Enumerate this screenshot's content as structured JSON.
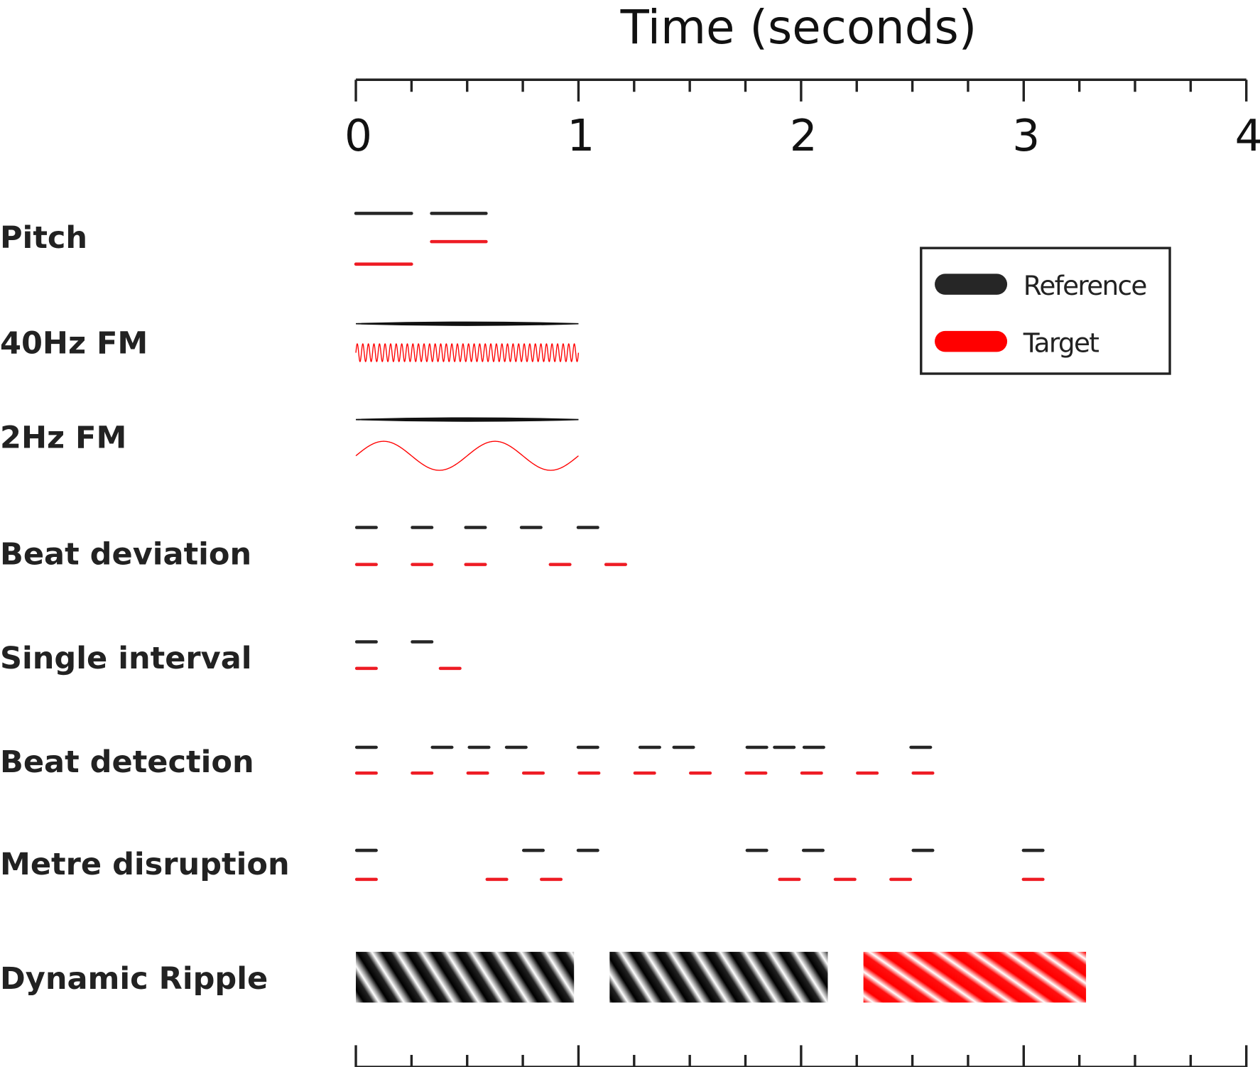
{
  "chart_data": {
    "type": "timeline",
    "title": "Time (seconds)",
    "xlim": [
      0,
      4
    ],
    "major_ticks": [
      "0",
      "1",
      "2",
      "3",
      "4"
    ],
    "minor_tick_step": 0.25,
    "tone_duration": 0.095,
    "colors": {
      "reference": "#262626",
      "target": "#ee1c24",
      "target_ripple": "#ff0000"
    },
    "legend": {
      "position": "top-right",
      "reference": "Reference",
      "target": "Target"
    },
    "rows": [
      {
        "label": "Pitch",
        "type": "tones",
        "reference": [
          {
            "start": 0,
            "end": 0.25,
            "level": "mid"
          },
          {
            "start": 0.34,
            "end": 0.585,
            "level": "mid"
          }
        ],
        "target": [
          {
            "start": 0,
            "end": 0.25,
            "level": "low"
          },
          {
            "start": 0.34,
            "end": 0.585,
            "level": "middle-low"
          }
        ]
      },
      {
        "label": "40Hz FM",
        "type": "fm",
        "reference_duration": 1,
        "target_rate_hz": 40,
        "target_duration": 1
      },
      {
        "label": "2Hz FM",
        "type": "fm",
        "reference_duration": 1,
        "target_rate_hz": 2,
        "target_duration": 1
      },
      {
        "label": "Beat deviation",
        "type": "onsets",
        "reference": [
          0,
          0.25,
          0.49,
          0.74,
          0.995
        ],
        "target": [
          0,
          0.25,
          0.49,
          0.87,
          1.12
        ]
      },
      {
        "label": "Single interval",
        "type": "onsets",
        "reference": [
          0,
          0.25
        ],
        "target": [
          0,
          0.376
        ]
      },
      {
        "label": "Beat detection",
        "type": "onsets",
        "reference": [
          0,
          0.34,
          0.506,
          0.673,
          0.995,
          1.273,
          1.425,
          1.754,
          1.877,
          2.01,
          2.49
        ],
        "target": [
          0,
          0.25,
          0.5,
          0.75,
          1.0,
          1.25,
          1.5,
          1.75,
          2.0,
          2.25,
          2.5
        ]
      },
      {
        "label": "Metre disruption",
        "type": "onsets",
        "reference": [
          0,
          0.75,
          0.995,
          1.754,
          2.007,
          2.5,
          2.995
        ],
        "target": [
          0,
          0.586,
          0.83,
          1.9,
          2.15,
          2.4,
          2.995
        ]
      },
      {
        "label": "Dynamic Ripple",
        "type": "ripple",
        "blocks": [
          {
            "start": 0,
            "end": 0.98,
            "kind": "reference"
          },
          {
            "start": 1.14,
            "end": 2.12,
            "kind": "reference"
          },
          {
            "start": 2.28,
            "end": 3.28,
            "kind": "target"
          }
        ]
      }
    ]
  }
}
